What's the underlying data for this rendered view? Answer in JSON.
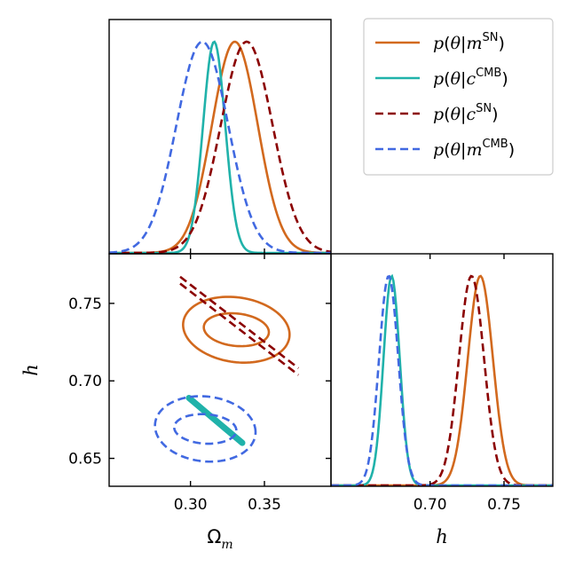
{
  "chart_data": {
    "type": "corner",
    "series": [
      {
        "id": "sn_m",
        "name": "p(θ|m^SN)",
        "color": "#d2691e",
        "dashed": false,
        "omega": {
          "mu": 0.33,
          "sigma": 0.0155
        },
        "h": {
          "mu": 0.734,
          "sigma": 0.0085
        },
        "ellipse": {
          "center": [
            0.331,
            0.733
          ],
          "rx": [
            0.022,
            0.036
          ],
          "ry": [
            0.0105,
            0.021
          ],
          "rho": -0.15
        }
      },
      {
        "id": "cmb_c",
        "name": "p(θ|c^CMB)",
        "color": "#20b2aa",
        "dashed": false,
        "omega": {
          "mu": 0.316,
          "sigma": 0.0075
        },
        "h": {
          "mu": 0.674,
          "sigma": 0.0055
        },
        "segment": {
          "from": [
            0.299,
            0.689
          ],
          "to": [
            0.335,
            0.66
          ]
        }
      },
      {
        "id": "sn_c",
        "name": "p(θ|c^SN)",
        "color": "#8b0000",
        "dashed": true,
        "omega": {
          "mu": 0.338,
          "sigma": 0.0175
        },
        "h": {
          "mu": 0.728,
          "sigma": 0.0085
        },
        "band": {
          "from": [
            0.293,
            0.765
          ],
          "to": [
            0.373,
            0.706
          ],
          "halfwidth": 0.0022
        }
      },
      {
        "id": "cmb_m",
        "name": "p(θ|m^CMB)",
        "color": "#4169e1",
        "dashed": true,
        "omega": {
          "mu": 0.308,
          "sigma": 0.0175
        },
        "h": {
          "mu": 0.672,
          "sigma": 0.0065
        },
        "ellipse": {
          "center": [
            0.31,
            0.669
          ],
          "rx": [
            0.021,
            0.034
          ],
          "ry": [
            0.0095,
            0.021
          ],
          "rho": -0.1
        }
      }
    ],
    "omega_axis": {
      "label": "Ωm",
      "range": [
        0.245,
        0.395
      ],
      "ticks": [
        0.3,
        0.35
      ],
      "tick_labels": [
        "0.30",
        "0.35"
      ]
    },
    "h_axis": {
      "label": "h",
      "range": [
        0.632,
        0.782
      ],
      "ticks": [
        0.65,
        0.7,
        0.75
      ],
      "tick_labels": [
        "0.65",
        "0.70",
        "0.75"
      ]
    },
    "h_marginal_axis": {
      "label": "h",
      "range": [
        0.633,
        0.783
      ],
      "ticks": [
        0.7,
        0.75
      ],
      "tick_labels": [
        "0.70",
        "0.75"
      ]
    },
    "legend": {
      "position": "top-right"
    }
  }
}
